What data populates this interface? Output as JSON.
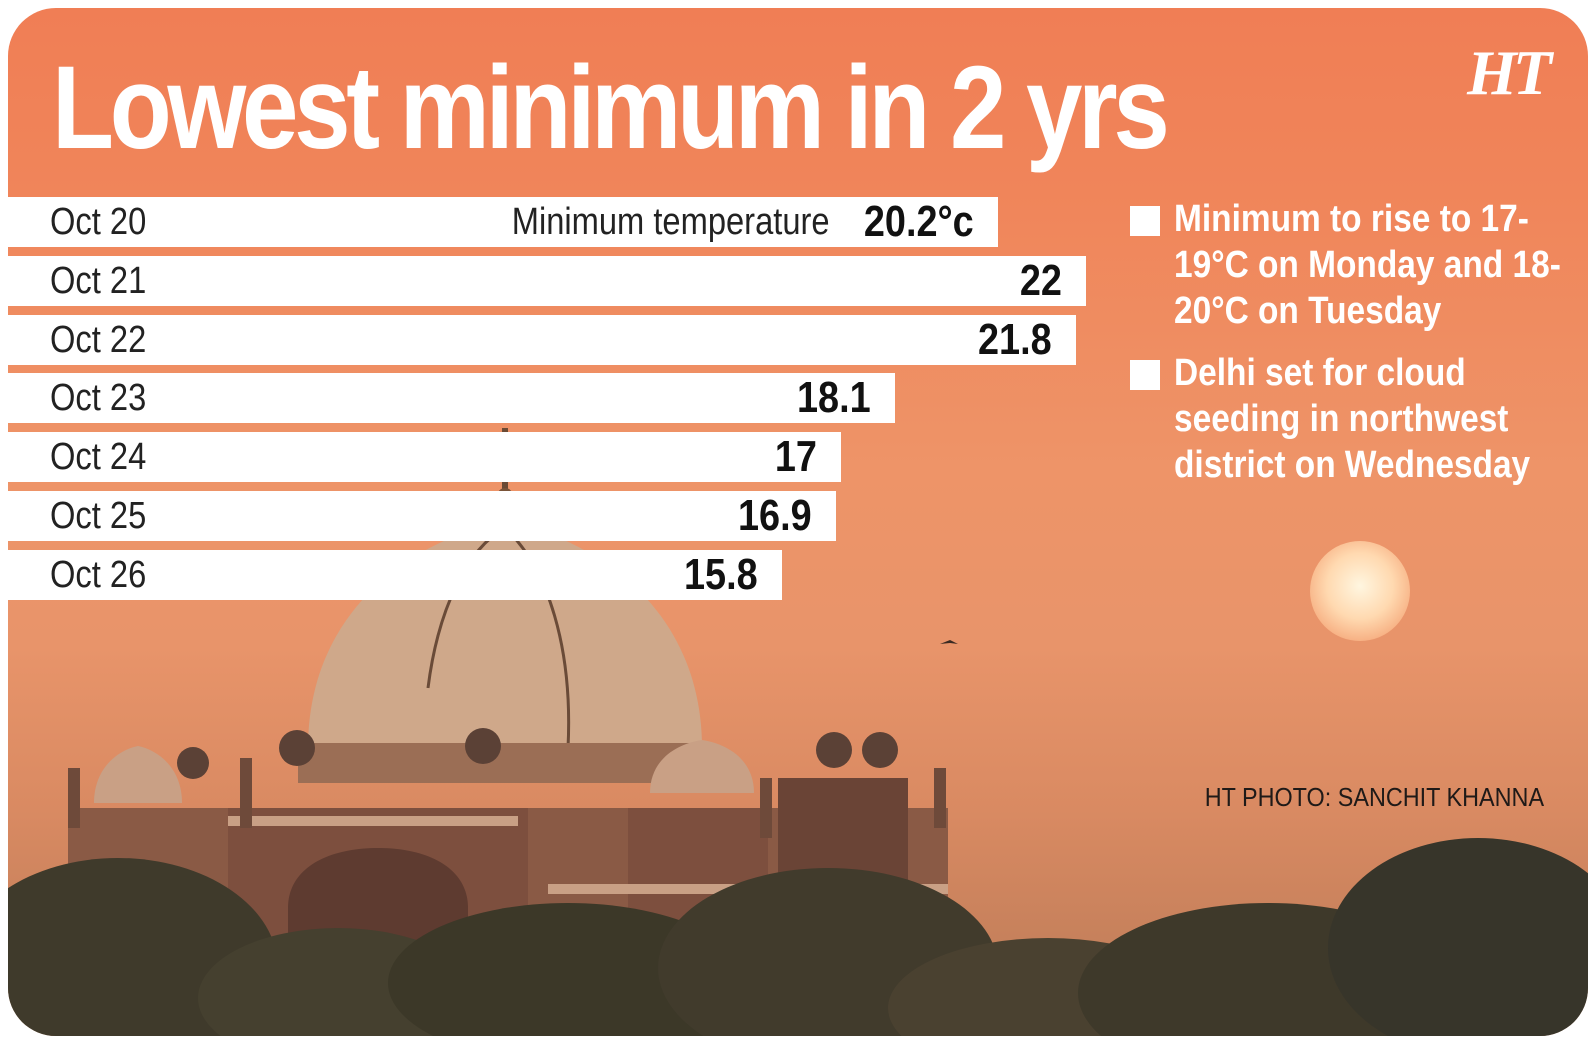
{
  "title": "Lowest minimum in 2 yrs",
  "logo": "HT",
  "colors": {
    "background": "#f07e55",
    "bar": "#ffffff",
    "text_light": "#ffffff",
    "text_dark": "#111111"
  },
  "chart_data": {
    "type": "bar",
    "orientation": "horizontal",
    "title": "Lowest minimum in 2 yrs",
    "categories": [
      "Oct 20",
      "Oct 21",
      "Oct 22",
      "Oct 23",
      "Oct 24",
      "Oct 25",
      "Oct 26"
    ],
    "series": [
      {
        "name": "Minimum temperature",
        "values": [
          20.2,
          22,
          21.8,
          18.1,
          17,
          16.9,
          15.8
        ]
      }
    ],
    "value_labels": [
      "20.2°c",
      "22",
      "21.8",
      "18.1",
      "17",
      "16.9",
      "15.8"
    ],
    "grid": false
  },
  "notes": [
    "Minimum to rise to 17-19°C on Monday and 18-20°C on Tuesday",
    "Delhi set for cloud seeding in northwest district on Wednesday"
  ],
  "credit": "HT PHOTO: SANCHIT KHANNA"
}
